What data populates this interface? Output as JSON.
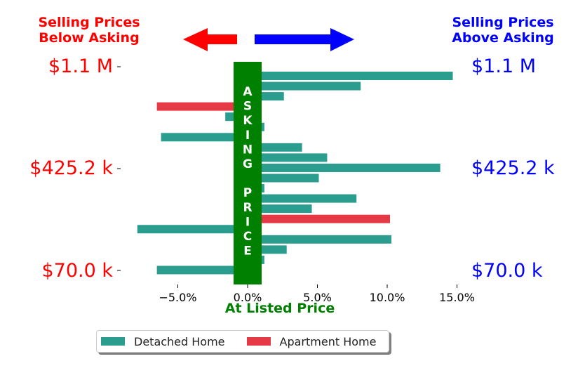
{
  "header": {
    "left_line1": "Selling Prices",
    "left_line2": "Below Asking",
    "right_line1": "Selling Prices",
    "right_line2": "Above Asking",
    "left_color": "#ff0000",
    "right_color": "#0000ff"
  },
  "price_labels": {
    "high_left": "$1.1 M",
    "mid_left": "$425.2 k",
    "low_left": "$70.0 k",
    "high_right": "$1.1 M",
    "mid_right": "$425.2 k",
    "low_right": "$70.0 k"
  },
  "asking_band": {
    "letters": [
      "A",
      "S",
      "K",
      "I",
      "N",
      "G",
      "",
      "P",
      "R",
      "I",
      "C",
      "E"
    ],
    "color": "#008000"
  },
  "legend": {
    "detached": "Detached Home",
    "apartment": "Apartment Home"
  },
  "colors": {
    "detached": "#2a9d8f",
    "apartment": "#e63946"
  },
  "chart_data": {
    "type": "bar",
    "orientation": "horizontal",
    "xlabel": "At Listed Price",
    "xlim": [
      -10.0,
      15.0
    ],
    "xticks": [
      "−5.0%",
      "0.0%",
      "5.0%",
      "10.0%",
      "15.0%"
    ],
    "xtick_values": [
      -5,
      0,
      5,
      10,
      15
    ],
    "series": [
      {
        "name": "Detached Home",
        "color": "#2a9d8f"
      },
      {
        "name": "Apartment Home",
        "color": "#e63946"
      }
    ],
    "values": [
      14.7,
      8.1,
      2.6,
      -6.5,
      -1.6,
      1.2,
      -6.2,
      3.9,
      5.7,
      13.8,
      5.1,
      1.2,
      7.8,
      4.6,
      10.2,
      -7.9,
      10.3,
      2.8,
      1.2,
      -6.5
    ],
    "types": [
      "detached",
      "detached",
      "detached",
      "apartment",
      "detached",
      "detached",
      "detached",
      "detached",
      "detached",
      "detached",
      "detached",
      "detached",
      "detached",
      "detached",
      "apartment",
      "detached",
      "detached",
      "detached",
      "detached",
      "detached"
    ],
    "legend_position": "below"
  }
}
